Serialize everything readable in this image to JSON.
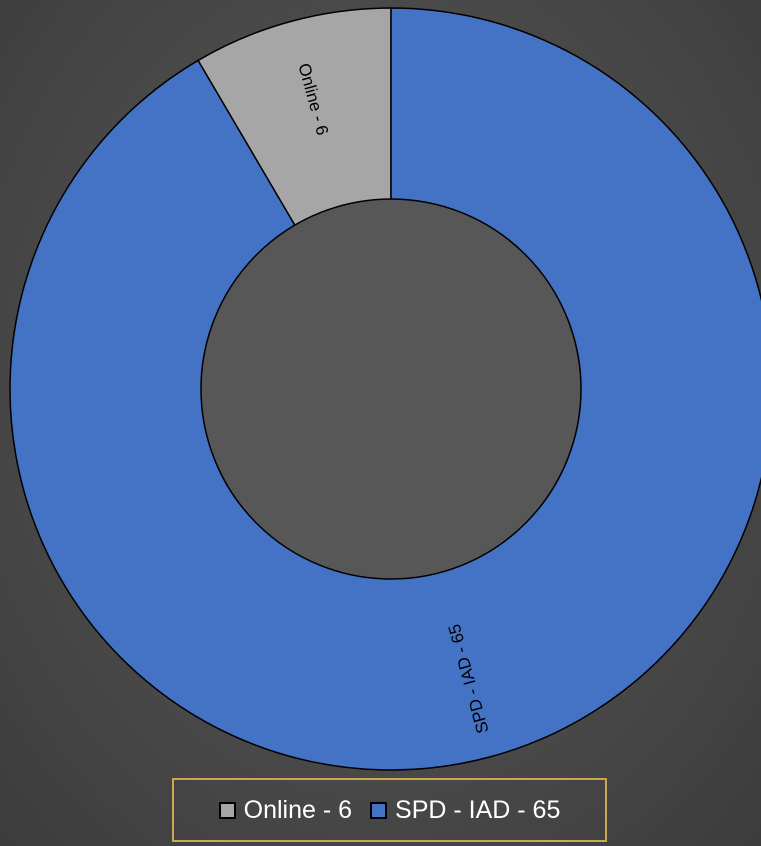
{
  "chart_data": {
    "type": "pie",
    "variant": "donut",
    "title": "",
    "categories": [
      "Online",
      "SPD - IAD"
    ],
    "values": [
      6,
      65
    ],
    "slice_labels": [
      "Online - 6",
      "SPD - IAD - 65"
    ],
    "colors": [
      "#a6a6a6",
      "#4472c4"
    ],
    "legend": {
      "placement": "bottom",
      "items": [
        "Online - 6",
        "SPD - IAD - 65"
      ]
    }
  },
  "theme": {
    "outline_color": "#000000",
    "hole_color": "#575757",
    "legend_border_color": "#c8a850",
    "label_color": "#000000"
  }
}
